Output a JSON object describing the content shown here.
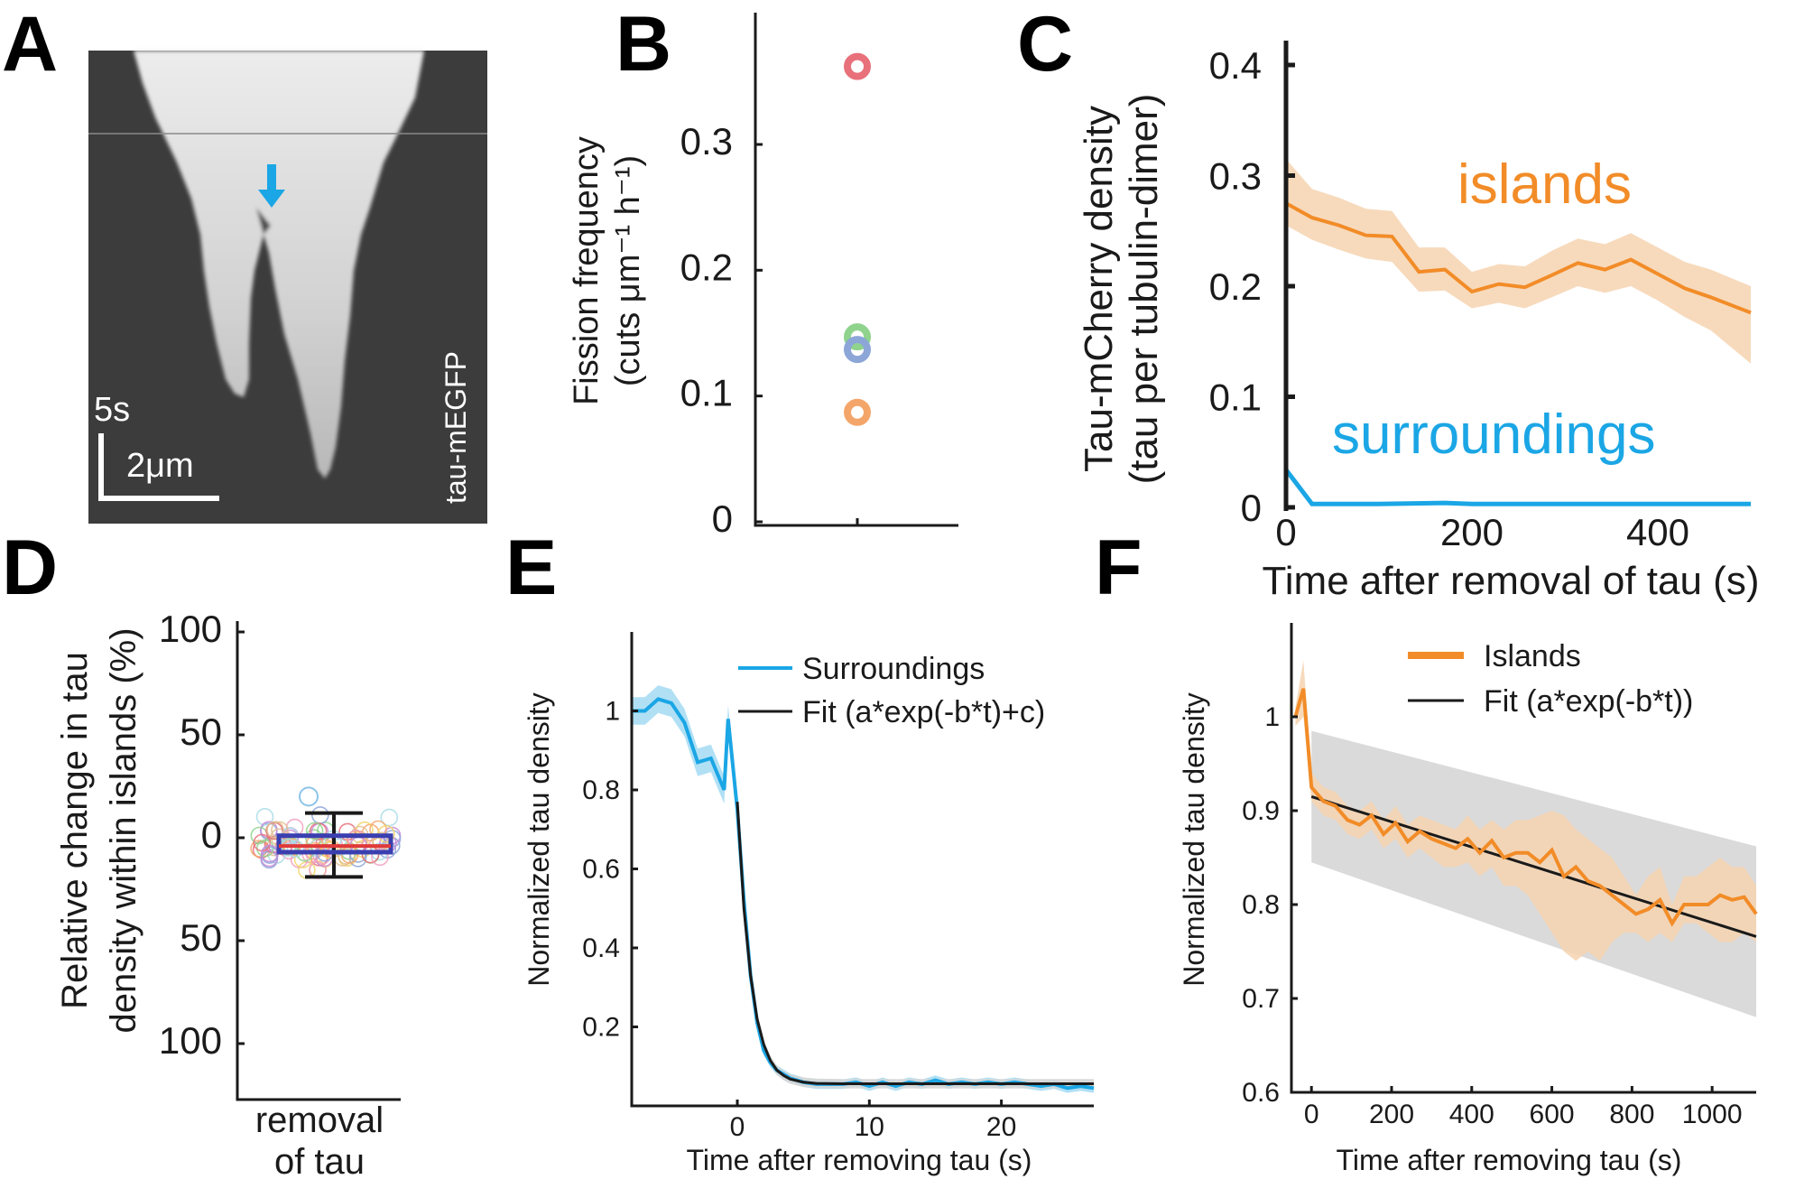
{
  "panels": {
    "A": {
      "letter": "A",
      "time_scale": "5s",
      "space_scale": "2μm",
      "channel": "tau-mEGFP"
    },
    "B": {
      "letter": "B"
    },
    "C": {
      "letter": "C",
      "label_islands": "islands",
      "label_surroundings": "surroundings"
    },
    "D": {
      "letter": "D"
    },
    "E": {
      "letter": "E"
    },
    "F": {
      "letter": "F"
    }
  },
  "colors": {
    "orange": "#F28C28",
    "orange_band": "#F6D3B0",
    "blue": "#1BA6E5",
    "blue_band": "#9ED8F3",
    "grey_band": "#D6D6D6",
    "red": "#E8707A",
    "green": "#8FD38D",
    "steel": "#8DA6D8",
    "peach": "#F4A66A",
    "box": "#3A3FB0",
    "median": "#E03A3A"
  },
  "chart_data": [
    {
      "panel": "B",
      "type": "scatter",
      "ylabel_line1": "Fission frequency",
      "ylabel_line2": "(cuts μm⁻¹ h⁻¹)",
      "ylim": [
        0,
        0.4
      ],
      "yticks": [
        "0",
        "0.1",
        "0.2",
        "0.3"
      ],
      "ytick_values": [
        0,
        0.1,
        0.2,
        0.3
      ],
      "points": [
        {
          "y": 0.362,
          "color": "#E8707A"
        },
        {
          "y": 0.147,
          "color": "#8FD38D"
        },
        {
          "y": 0.137,
          "color": "#8DA6D8"
        },
        {
          "y": 0.087,
          "color": "#F4A66A"
        }
      ]
    },
    {
      "panel": "C",
      "type": "line",
      "xlabel": "Time after removal of tau (s)",
      "ylabel_line1": "Tau-mCherry density",
      "ylabel_line2": "(tau per tubulin-dimer)",
      "xlim": [
        0,
        500
      ],
      "ylim": [
        0,
        0.42
      ],
      "xticks": [
        "0",
        "200",
        "400"
      ],
      "xtick_values": [
        0,
        200,
        400
      ],
      "yticks": [
        "0",
        "0.1",
        "0.2",
        "0.3",
        "0.4"
      ],
      "ytick_values": [
        0,
        0.1,
        0.2,
        0.3,
        0.4
      ],
      "series": [
        {
          "name": "islands",
          "x": [
            0,
            28,
            57,
            86,
            114,
            143,
            171,
            200,
            229,
            257,
            286,
            314,
            343,
            371,
            400,
            429,
            457,
            500
          ],
          "y": [
            0.275,
            0.262,
            0.255,
            0.246,
            0.245,
            0.213,
            0.215,
            0.195,
            0.202,
            0.199,
            0.21,
            0.221,
            0.215,
            0.224,
            0.211,
            0.198,
            0.19,
            0.176
          ],
          "lo": [
            0.255,
            0.242,
            0.233,
            0.225,
            0.222,
            0.195,
            0.196,
            0.18,
            0.185,
            0.18,
            0.19,
            0.2,
            0.194,
            0.2,
            0.187,
            0.172,
            0.16,
            0.13
          ],
          "hi": [
            0.315,
            0.288,
            0.28,
            0.27,
            0.268,
            0.235,
            0.235,
            0.213,
            0.22,
            0.218,
            0.232,
            0.243,
            0.238,
            0.248,
            0.235,
            0.222,
            0.215,
            0.2
          ]
        },
        {
          "name": "surroundings",
          "x": [
            0,
            28,
            57,
            100,
            171,
            200,
            300,
            400,
            500
          ],
          "y": [
            0.034,
            0.003,
            0.003,
            0.003,
            0.004,
            0.003,
            0.003,
            0.003,
            0.003
          ]
        }
      ]
    },
    {
      "panel": "D",
      "type": "box",
      "ylabel_line1": "Relative change in tau",
      "ylabel_line2": "density within islands (%)",
      "category": [
        "removal",
        "of tau"
      ],
      "ylim": [
        -125,
        100
      ],
      "yticks": [
        "100",
        "50",
        "0",
        "50",
        "100"
      ],
      "ytick_values": [
        100,
        50,
        0,
        -50,
        -100
      ],
      "box": {
        "q1": -7,
        "median": -4,
        "q3": 1,
        "whisker_low": -19,
        "whisker_high": 12
      },
      "outlier_high": 20
    },
    {
      "panel": "E",
      "type": "line",
      "xlabel": "Time after removing tau (s)",
      "ylabel": "Normalized tau density",
      "xlim": [
        -8,
        27
      ],
      "ylim": [
        0,
        1.2
      ],
      "xticks": [
        "0",
        "10",
        "20"
      ],
      "xtick_values": [
        0,
        10,
        20
      ],
      "yticks": [
        "0.2",
        "0.4",
        "0.6",
        "0.8",
        "1"
      ],
      "ytick_values": [
        0.2,
        0.4,
        0.6,
        0.8,
        1
      ],
      "legend": [
        "Surroundings",
        "Fit (a*exp(-b*t)+c)"
      ],
      "series": [
        {
          "name": "Surroundings",
          "x": [
            -8,
            -7,
            -6,
            -5,
            -4,
            -3,
            -2,
            -1,
            -0.7,
            0,
            0.5,
            1,
            1.5,
            2,
            2.5,
            3,
            4,
            5,
            6,
            7,
            8,
            9,
            10,
            11,
            12,
            13,
            14,
            15,
            16,
            17,
            18,
            19,
            20,
            21,
            22,
            23,
            24,
            25,
            26,
            27
          ],
          "y": [
            1.0,
            1.0,
            1.03,
            1.02,
            0.97,
            0.87,
            0.88,
            0.8,
            0.98,
            0.75,
            0.52,
            0.33,
            0.21,
            0.14,
            0.11,
            0.09,
            0.07,
            0.06,
            0.055,
            0.055,
            0.055,
            0.06,
            0.05,
            0.06,
            0.05,
            0.06,
            0.055,
            0.065,
            0.055,
            0.06,
            0.055,
            0.06,
            0.055,
            0.06,
            0.055,
            0.05,
            0.055,
            0.045,
            0.05,
            0.045
          ]
        },
        {
          "name": "Fit (a*exp(-b*t)+c)",
          "x": [
            0,
            0.5,
            1,
            1.5,
            2,
            2.5,
            3,
            3.5,
            4,
            5,
            6,
            8,
            10,
            15,
            20,
            27
          ],
          "y": [
            0.77,
            0.5,
            0.33,
            0.22,
            0.155,
            0.115,
            0.09,
            0.077,
            0.068,
            0.06,
            0.057,
            0.056,
            0.056,
            0.056,
            0.056,
            0.056
          ]
        }
      ]
    },
    {
      "panel": "F",
      "type": "line",
      "xlabel": "Time after removing tau (s)",
      "ylabel": "Normalized tau density",
      "xlim": [
        -50,
        1110
      ],
      "ylim": [
        0.6,
        1.1
      ],
      "xticks": [
        "0",
        "200",
        "400",
        "600",
        "800",
        "1000"
      ],
      "xtick_values": [
        0,
        200,
        400,
        600,
        800,
        1000
      ],
      "yticks": [
        "0.6",
        "0.7",
        "0.8",
        "0.9",
        "1"
      ],
      "ytick_values": [
        0.6,
        0.7,
        0.8,
        0.9,
        1
      ],
      "legend": [
        "Islands",
        "Fit (a*exp(-b*t))"
      ],
      "series": [
        {
          "name": "Islands",
          "x": [
            -40,
            -20,
            0,
            30,
            60,
            90,
            120,
            150,
            180,
            210,
            240,
            270,
            300,
            330,
            360,
            390,
            420,
            450,
            480,
            510,
            540,
            570,
            600,
            630,
            660,
            690,
            720,
            750,
            780,
            810,
            840,
            870,
            900,
            930,
            960,
            990,
            1020,
            1050,
            1080,
            1110
          ],
          "y": [
            1.0,
            1.03,
            0.925,
            0.91,
            0.905,
            0.89,
            0.885,
            0.895,
            0.875,
            0.887,
            0.867,
            0.878,
            0.87,
            0.865,
            0.86,
            0.87,
            0.855,
            0.868,
            0.85,
            0.855,
            0.855,
            0.845,
            0.858,
            0.83,
            0.84,
            0.825,
            0.82,
            0.81,
            0.8,
            0.79,
            0.795,
            0.805,
            0.78,
            0.8,
            0.8,
            0.8,
            0.81,
            0.805,
            0.808,
            0.79
          ],
          "lo": [
            0.99,
            1.0,
            0.91,
            0.895,
            0.89,
            0.875,
            0.87,
            0.88,
            0.86,
            0.87,
            0.85,
            0.86,
            0.85,
            0.84,
            0.84,
            0.845,
            0.83,
            0.84,
            0.82,
            0.82,
            0.81,
            0.79,
            0.77,
            0.75,
            0.74,
            0.75,
            0.74,
            0.76,
            0.77,
            0.77,
            0.76,
            0.77,
            0.76,
            0.78,
            0.78,
            0.77,
            0.76,
            0.76,
            0.77,
            0.76
          ],
          "hi": [
            1.01,
            1.06,
            0.94,
            0.925,
            0.92,
            0.905,
            0.9,
            0.91,
            0.89,
            0.905,
            0.885,
            0.895,
            0.89,
            0.885,
            0.88,
            0.895,
            0.88,
            0.89,
            0.88,
            0.89,
            0.89,
            0.895,
            0.9,
            0.895,
            0.88,
            0.87,
            0.86,
            0.85,
            0.83,
            0.81,
            0.83,
            0.84,
            0.8,
            0.83,
            0.83,
            0.84,
            0.85,
            0.84,
            0.84,
            0.82
          ]
        },
        {
          "name": "Fit (a*exp(-b*t))",
          "x": [
            0,
            1110
          ],
          "y": [
            0.915,
            0.766
          ]
        }
      ],
      "band": {
        "x": [
          0,
          1110
        ],
        "lo": [
          0.845,
          0.68
        ],
        "hi": [
          0.985,
          0.862
        ]
      }
    }
  ]
}
